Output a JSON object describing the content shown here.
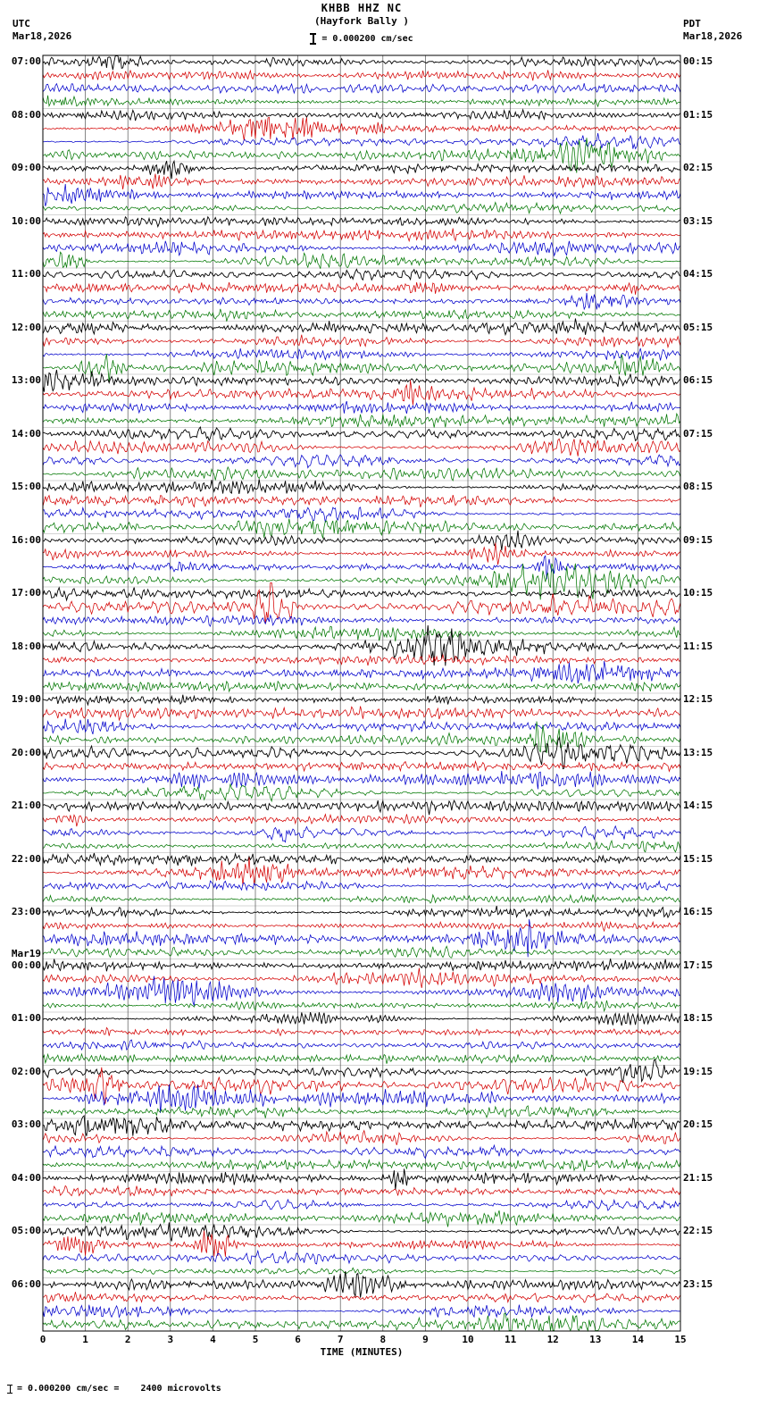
{
  "header": {
    "title": "KHBB HHZ NC",
    "subtitle": "(Hayfork Bally )",
    "scale_label": "= 0.000200 cm/sec",
    "left_tz": "UTC",
    "left_date": "Mar18,2026",
    "right_tz": "PDT",
    "right_date": "Mar18,2026"
  },
  "footer": {
    "note": "= 0.000200 cm/sec =    2400 microvolts"
  },
  "axis": {
    "xlabel": "TIME (MINUTES)",
    "ticks": [
      "0",
      "1",
      "2",
      "3",
      "4",
      "5",
      "6",
      "7",
      "8",
      "9",
      "10",
      "11",
      "12",
      "13",
      "14",
      "15"
    ]
  },
  "rows": {
    "left_labels": [
      "07:00",
      "08:00",
      "09:00",
      "10:00",
      "11:00",
      "12:00",
      "13:00",
      "14:00",
      "15:00",
      "16:00",
      "17:00",
      "18:00",
      "19:00",
      "20:00",
      "21:00",
      "22:00",
      "23:00",
      "00:00",
      "01:00",
      "02:00",
      "03:00",
      "04:00",
      "05:00",
      "06:00"
    ],
    "left_prefix": {
      "17": "Mar19"
    },
    "right_labels": [
      "00:15",
      "01:15",
      "02:15",
      "03:15",
      "04:15",
      "05:15",
      "06:15",
      "07:15",
      "08:15",
      "09:15",
      "10:15",
      "11:15",
      "12:15",
      "13:15",
      "14:15",
      "15:15",
      "16:15",
      "17:15",
      "18:15",
      "19:15",
      "20:15",
      "21:15",
      "22:15",
      "23:15"
    ]
  },
  "trace_colors": [
    "#000000",
    "#d40000",
    "#0000cc",
    "#007700"
  ],
  "chart_data": {
    "type": "line",
    "subtype": "seismogram-helicorder",
    "title": "KHBB HHZ NC",
    "station_name": "Hayfork Bally",
    "station": "KHBB",
    "channel": "HHZ",
    "network": "NC",
    "timezone_left": "UTC",
    "timezone_right": "PDT",
    "date_left": "Mar18,2026",
    "date_right": "Mar18,2026",
    "date_rollover_label": "Mar19",
    "xlabel": "TIME (MINUTES)",
    "x_range": [
      0,
      15
    ],
    "x_ticks": [
      0,
      1,
      2,
      3,
      4,
      5,
      6,
      7,
      8,
      9,
      10,
      11,
      12,
      13,
      14,
      15
    ],
    "minutes_per_trace": 15,
    "traces_per_hour": 4,
    "hours_shown": 24,
    "trace_color_cycle": [
      "black",
      "red",
      "blue",
      "green"
    ],
    "amplitude_scale": "0.000200 cm/sec = 2400 microvolts",
    "left_time_labels": [
      "07:00",
      "08:00",
      "09:00",
      "10:00",
      "11:00",
      "12:00",
      "13:00",
      "14:00",
      "15:00",
      "16:00",
      "17:00",
      "18:00",
      "19:00",
      "20:00",
      "21:00",
      "22:00",
      "23:00",
      "00:00",
      "01:00",
      "02:00",
      "03:00",
      "04:00",
      "05:00",
      "06:00"
    ],
    "right_time_labels": [
      "00:15",
      "01:15",
      "02:15",
      "03:15",
      "04:15",
      "05:15",
      "06:15",
      "07:15",
      "08:15",
      "09:15",
      "10:15",
      "11:15",
      "12:15",
      "13:15",
      "14:15",
      "15:15",
      "16:15",
      "17:15",
      "18:15",
      "19:15",
      "20:15",
      "21:15",
      "22:15",
      "23:15"
    ],
    "waveform": "continuous background microseism noise on all 96 traces; no labeled event picks",
    "grid": "vertical line each minute, horizontal line each hour row"
  }
}
